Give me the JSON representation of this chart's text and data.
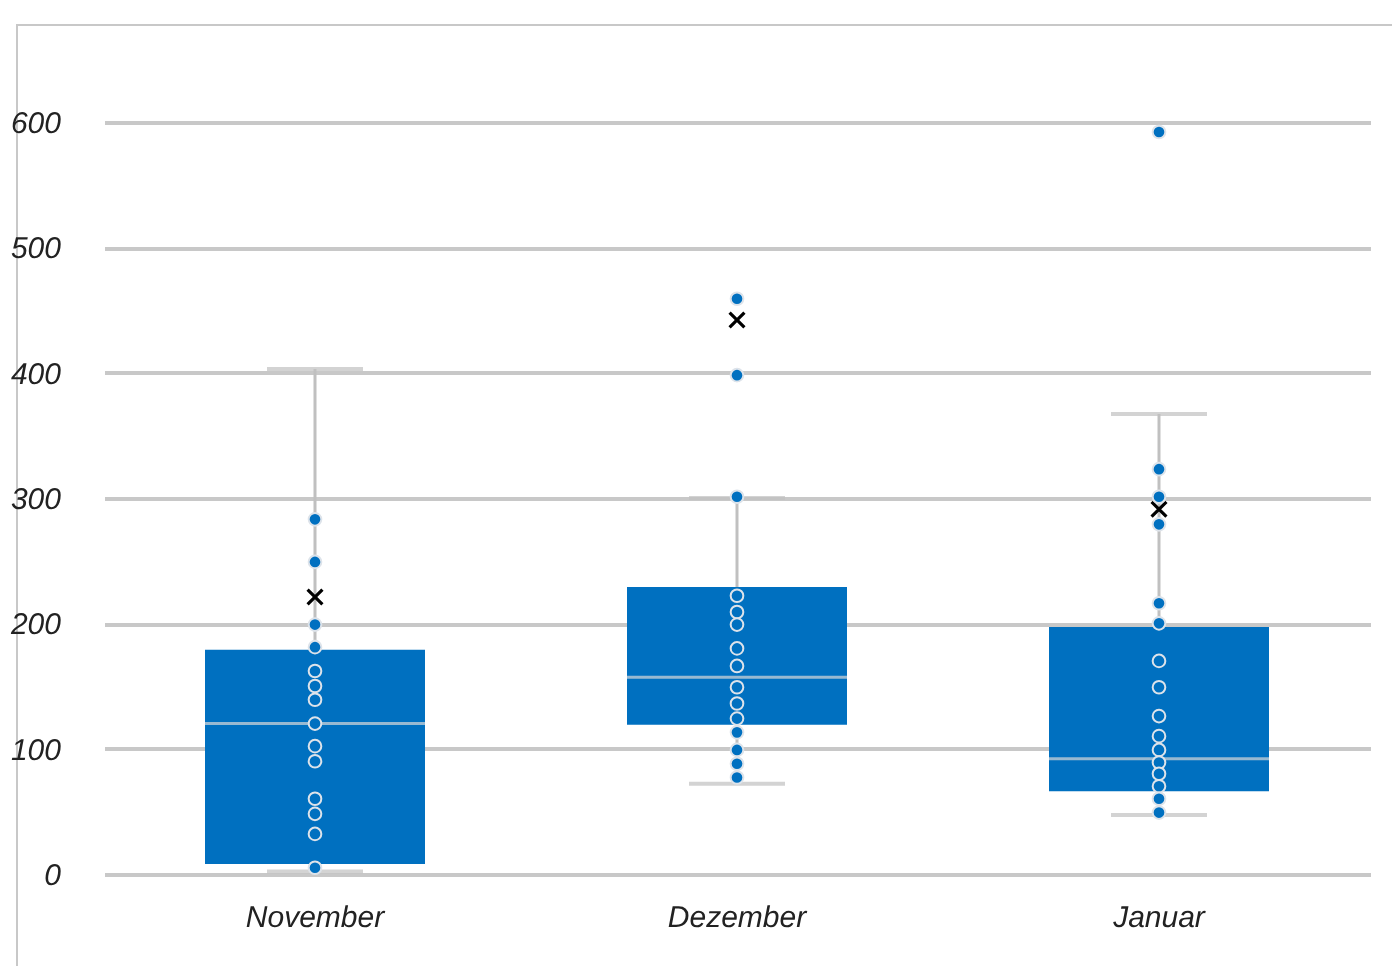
{
  "chart_data": {
    "type": "box",
    "categories": [
      "November",
      "Dezember",
      "Januar"
    ],
    "series": [
      {
        "color": "#0070c0",
        "boxes": [
          {
            "low": 2,
            "q1": 8,
            "median": 120,
            "q3": 179,
            "high": 403,
            "mean": 221
          },
          {
            "low": 72,
            "q1": 119,
            "median": 157,
            "q3": 229,
            "high": 300,
            "mean": 442,
            "outliers": [
              459,
              398
            ]
          },
          {
            "low": 47,
            "q1": 66,
            "median": 92,
            "q3": 197,
            "high": 367,
            "mean": 291,
            "outliers": [
              592
            ]
          }
        ]
      },
      {
        "type": "scatter",
        "color": "#0070c0",
        "x": [
          "November",
          "November",
          "November",
          "November",
          "November",
          "November",
          "November",
          "November",
          "November",
          "November",
          "November",
          "November",
          "November",
          "November",
          "Dezember",
          "Dezember",
          "Dezember",
          "Dezember",
          "Dezember",
          "Dezember",
          "Dezember",
          "Dezember",
          "Dezember",
          "Dezember",
          "Dezember",
          "Dezember",
          "Dezember",
          "Januar",
          "Januar",
          "Januar",
          "Januar",
          "Januar",
          "Januar",
          "Januar",
          "Januar",
          "Januar",
          "Januar",
          "Januar",
          "Januar",
          "Januar",
          "Januar",
          "Januar"
        ],
        "values": [
          283,
          249,
          199,
          181,
          162,
          150,
          139,
          120,
          102,
          90,
          60,
          48,
          32,
          5,
          301,
          222,
          209,
          199,
          180,
          166,
          149,
          136,
          124,
          113,
          99,
          88,
          77,
          323,
          301,
          279,
          216,
          200,
          170,
          149,
          126,
          110,
          99,
          89,
          80,
          70,
          60,
          49
        ]
      }
    ],
    "ylim": [
      0,
      600
    ],
    "yticks": [
      0,
      100,
      200,
      300,
      400,
      500,
      600
    ],
    "grid": "y"
  }
}
